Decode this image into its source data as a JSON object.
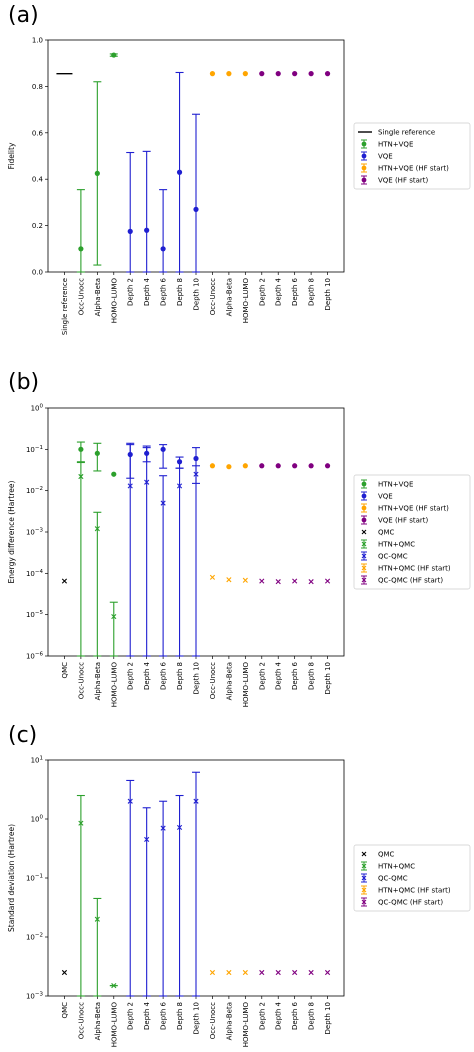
{
  "colors": {
    "single": "#000000",
    "htn": "#2ca02c",
    "vqe": "#1f1fd0",
    "htn_hf": "#ffa500",
    "vqe_hf": "#800080",
    "qmc": "#000000"
  },
  "chart_data": [
    {
      "panel": "(a)",
      "type": "scatter",
      "scale": "linear",
      "ylabel": "Fidelity",
      "ylim": [
        0,
        1.0
      ],
      "yticks": [
        {
          "v": 0.0,
          "label": "0.0"
        },
        {
          "v": 0.2,
          "label": "0.2"
        },
        {
          "v": 0.4,
          "label": "0.4"
        },
        {
          "v": 0.6,
          "label": "0.6"
        },
        {
          "v": 0.8,
          "label": "0.8"
        },
        {
          "v": 1.0,
          "label": "1.0"
        }
      ],
      "categories": [
        "Single reference",
        "Occ-Unocc",
        "Alpha-Beta",
        "HOMO-LUMO",
        "Depth 2",
        "Depth 4",
        "Depth 6",
        "Depth 8",
        "Depth 10",
        "Occ-Unocc",
        "Alpha-Beta",
        "HOMO-LUMO",
        "Depth 2",
        "Depth 4",
        "Depth 6",
        "Depth 8",
        "Depth 10"
      ],
      "legend_position": "right",
      "legend": [
        {
          "label": "Single reference",
          "series": "single_reference",
          "marker": "line"
        },
        {
          "label": "HTN+VQE",
          "series": "htn_vqe",
          "marker": "dot-err"
        },
        {
          "label": "VQE",
          "series": "vqe",
          "marker": "dot-err"
        },
        {
          "label": "HTN+VQE (HF start)",
          "series": "htn_vqe_hf",
          "marker": "dot-err"
        },
        {
          "label": "VQE (HF start)",
          "series": "vqe_hf",
          "marker": "dot-err"
        }
      ],
      "series": [
        {
          "name": "Single reference",
          "key": "single_reference",
          "color_key": "single",
          "marker": "hline",
          "points": [
            {
              "i": 0,
              "y": 0.855
            }
          ]
        },
        {
          "name": "HTN+VQE",
          "key": "htn_vqe",
          "color_key": "htn",
          "marker": "dot",
          "points": [
            {
              "i": 1,
              "y": 0.1,
              "lo": 0.0,
              "hi": 0.355
            },
            {
              "i": 2,
              "y": 0.425,
              "lo": 0.03,
              "hi": 0.82
            },
            {
              "i": 3,
              "y": 0.935,
              "lo": 0.93,
              "hi": 0.94
            }
          ]
        },
        {
          "name": "VQE",
          "key": "vqe",
          "color_key": "vqe",
          "marker": "dot",
          "points": [
            {
              "i": 4,
              "y": 0.175,
              "lo": 0.0,
              "hi": 0.515
            },
            {
              "i": 5,
              "y": 0.18,
              "lo": 0.0,
              "hi": 0.52
            },
            {
              "i": 6,
              "y": 0.1,
              "lo": 0.0,
              "hi": 0.355
            },
            {
              "i": 7,
              "y": 0.43,
              "lo": 0.0,
              "hi": 0.86
            },
            {
              "i": 8,
              "y": 0.27,
              "lo": 0.0,
              "hi": 0.68
            }
          ]
        },
        {
          "name": "HTN+VQE (HF start)",
          "key": "htn_vqe_hf",
          "color_key": "htn_hf",
          "marker": "dot",
          "points": [
            {
              "i": 9,
              "y": 0.855
            },
            {
              "i": 10,
              "y": 0.855
            },
            {
              "i": 11,
              "y": 0.855
            }
          ]
        },
        {
          "name": "VQE (HF start)",
          "key": "vqe_hf",
          "color_key": "vqe_hf",
          "marker": "dot",
          "points": [
            {
              "i": 12,
              "y": 0.855
            },
            {
              "i": 13,
              "y": 0.855
            },
            {
              "i": 14,
              "y": 0.855
            },
            {
              "i": 15,
              "y": 0.855
            },
            {
              "i": 16,
              "y": 0.855
            }
          ]
        }
      ]
    },
    {
      "panel": "(b)",
      "type": "scatter",
      "scale": "log",
      "ylabel": "Energy difference (Hartree)",
      "ylim": [
        1e-06,
        1
      ],
      "yticks": [
        {
          "v": 1e-06,
          "base": "10",
          "exp": "−6"
        },
        {
          "v": 1e-05,
          "base": "10",
          "exp": "−5"
        },
        {
          "v": 0.0001,
          "base": "10",
          "exp": "−4"
        },
        {
          "v": 0.001,
          "base": "10",
          "exp": "−3"
        },
        {
          "v": 0.01,
          "base": "10",
          "exp": "−2"
        },
        {
          "v": 0.1,
          "base": "10",
          "exp": "−1"
        },
        {
          "v": 1,
          "base": "10",
          "exp": "0"
        }
      ],
      "categories": [
        "QMC",
        "Occ-Unocc",
        "Alpha-Beta",
        "HOMO-LUMO",
        "Depth 2",
        "Depth 4",
        "Depth 6",
        "Depth 8",
        "Depth 10",
        "Occ-Unocc",
        "Alpha-Beta",
        "HOMO-LUMO",
        "Depth 2",
        "Depth 4",
        "Depth 6",
        "Depth 8",
        "Depth 10"
      ],
      "legend_position": "right",
      "legend": [
        {
          "label": "HTN+VQE",
          "series": "htn_vqe",
          "marker": "dot-err"
        },
        {
          "label": "VQE",
          "series": "vqe",
          "marker": "dot-err"
        },
        {
          "label": "HTN+VQE (HF start)",
          "series": "htn_vqe_hf",
          "marker": "dot-err"
        },
        {
          "label": "VQE (HF start)",
          "series": "vqe_hf",
          "marker": "dot-err"
        },
        {
          "label": "QMC",
          "series": "qmc",
          "marker": "x"
        },
        {
          "label": "HTN+QMC",
          "series": "htn_qmc",
          "marker": "x-err"
        },
        {
          "label": "QC-QMC",
          "series": "qc_qmc",
          "marker": "x-err"
        },
        {
          "label": "HTN+QMC (HF start)",
          "series": "htn_qmc_hf",
          "marker": "x-err"
        },
        {
          "label": "QC-QMC (HF start)",
          "series": "qc_qmc_hf",
          "marker": "x-err"
        }
      ],
      "series": [
        {
          "name": "HTN+VQE",
          "key": "htn_vqe",
          "color_key": "htn",
          "marker": "dot",
          "points": [
            {
              "i": 1,
              "y": 0.1,
              "lo": 0.05,
              "hi": 0.15
            },
            {
              "i": 2,
              "y": 0.08,
              "lo": 0.03,
              "hi": 0.14
            },
            {
              "i": 3,
              "y": 0.025
            }
          ]
        },
        {
          "name": "VQE",
          "key": "vqe",
          "color_key": "vqe",
          "marker": "dot",
          "points": [
            {
              "i": 4,
              "y": 0.075,
              "lo": 0.02,
              "hi": 0.13
            },
            {
              "i": 5,
              "y": 0.08,
              "lo": 0.05,
              "hi": 0.11
            },
            {
              "i": 6,
              "y": 0.1,
              "lo": 0.035,
              "hi": 0.13
            },
            {
              "i": 7,
              "y": 0.05,
              "lo": 0.035,
              "hi": 0.065
            },
            {
              "i": 8,
              "y": 0.06,
              "lo": 0.015,
              "hi": 0.11
            }
          ]
        },
        {
          "name": "HTN+VQE (HF start)",
          "key": "htn_vqe_hf",
          "color_key": "htn_hf",
          "marker": "dot",
          "points": [
            {
              "i": 9,
              "y": 0.04
            },
            {
              "i": 10,
              "y": 0.038
            },
            {
              "i": 11,
              "y": 0.04
            }
          ]
        },
        {
          "name": "VQE (HF start)",
          "key": "vqe_hf",
          "color_key": "vqe_hf",
          "marker": "dot",
          "points": [
            {
              "i": 12,
              "y": 0.04
            },
            {
              "i": 13,
              "y": 0.04
            },
            {
              "i": 14,
              "y": 0.04
            },
            {
              "i": 15,
              "y": 0.04
            },
            {
              "i": 16,
              "y": 0.04
            }
          ]
        },
        {
          "name": "QMC",
          "key": "qmc",
          "color_key": "qmc",
          "marker": "x",
          "points": [
            {
              "i": 0,
              "y": 6.5e-05
            }
          ]
        },
        {
          "name": "HTN+QMC",
          "key": "htn_qmc",
          "color_key": "htn",
          "marker": "x",
          "points": [
            {
              "i": 1,
              "y": 0.022,
              "lo": 1e-06,
              "hi": 0.048
            },
            {
              "i": 2,
              "y": 0.0012,
              "lo": 1e-06,
              "hi": 0.003
            },
            {
              "i": 3,
              "y": 9e-06,
              "lo": 1e-06,
              "hi": 2e-05
            }
          ]
        },
        {
          "name": "QC-QMC",
          "key": "qc_qmc",
          "color_key": "vqe",
          "marker": "x",
          "points": [
            {
              "i": 4,
              "y": 0.013,
              "lo": 1e-06,
              "hi": 0.14
            },
            {
              "i": 5,
              "y": 0.016,
              "lo": 1e-06,
              "hi": 0.12
            },
            {
              "i": 6,
              "y": 0.005,
              "lo": 1e-06,
              "hi": 0.023
            },
            {
              "i": 7,
              "y": 0.013,
              "lo": 1e-06,
              "hi": 0.035
            },
            {
              "i": 8,
              "y": 0.025,
              "lo": 1e-06,
              "hi": 0.04
            }
          ]
        },
        {
          "name": "HTN+QMC (HF start)",
          "key": "htn_qmc_hf",
          "color_key": "htn_hf",
          "marker": "x",
          "points": [
            {
              "i": 9,
              "y": 8e-05
            },
            {
              "i": 10,
              "y": 7e-05
            },
            {
              "i": 11,
              "y": 6.8e-05
            }
          ]
        },
        {
          "name": "QC-QMC (HF start)",
          "key": "qc_qmc_hf",
          "color_key": "vqe_hf",
          "marker": "x",
          "points": [
            {
              "i": 12,
              "y": 6.5e-05
            },
            {
              "i": 13,
              "y": 6.3e-05
            },
            {
              "i": 14,
              "y": 6.5e-05
            },
            {
              "i": 15,
              "y": 6.3e-05
            },
            {
              "i": 16,
              "y": 6.5e-05
            }
          ]
        }
      ]
    },
    {
      "panel": "(c)",
      "type": "scatter",
      "scale": "log",
      "ylabel": "Standard deviation (Hartree)",
      "ylim": [
        0.001,
        10
      ],
      "yticks": [
        {
          "v": 0.001,
          "base": "10",
          "exp": "−3"
        },
        {
          "v": 0.01,
          "base": "10",
          "exp": "−2"
        },
        {
          "v": 0.1,
          "base": "10",
          "exp": "−1"
        },
        {
          "v": 1,
          "base": "10",
          "exp": "0"
        },
        {
          "v": 10,
          "base": "10",
          "exp": "1"
        }
      ],
      "categories": [
        "QMC",
        "Occ-Unocc",
        "Alpha-Beta",
        "HOMO-LUMO",
        "Depth 2",
        "Depth 4",
        "Depth 6",
        "Depth 8",
        "Depth 10",
        "Occ-Unocc",
        "Alpha-Beta",
        "HOMO-LUMO",
        "Depth 2",
        "Depth 4",
        "Depth 6",
        "Depth 8",
        "Depth 10"
      ],
      "legend_position": "right",
      "legend": [
        {
          "label": "QMC",
          "series": "qmc",
          "marker": "x"
        },
        {
          "label": "HTN+QMC",
          "series": "htn_qmc",
          "marker": "x-err"
        },
        {
          "label": "QC-QMC",
          "series": "qc_qmc",
          "marker": "x-err"
        },
        {
          "label": "HTN+QMC (HF start)",
          "series": "htn_qmc_hf",
          "marker": "x-err"
        },
        {
          "label": "QC-QMC (HF start)",
          "series": "qc_qmc_hf",
          "marker": "x-err"
        }
      ],
      "series": [
        {
          "name": "QMC",
          "key": "qmc",
          "color_key": "qmc",
          "marker": "x",
          "points": [
            {
              "i": 0,
              "y": 0.0025
            }
          ]
        },
        {
          "name": "HTN+QMC",
          "key": "htn_qmc",
          "color_key": "htn",
          "marker": "x",
          "points": [
            {
              "i": 1,
              "y": 0.85,
              "lo": 0.001,
              "hi": 2.5
            },
            {
              "i": 2,
              "y": 0.02,
              "lo": 0.001,
              "hi": 0.045
            },
            {
              "i": 3,
              "y": 0.0015,
              "lo": 0.0015,
              "hi": 0.0015
            }
          ]
        },
        {
          "name": "QC-QMC",
          "key": "qc_qmc",
          "color_key": "vqe",
          "marker": "x",
          "points": [
            {
              "i": 4,
              "y": 2.0,
              "lo": 0.001,
              "hi": 4.5
            },
            {
              "i": 5,
              "y": 0.45,
              "lo": 0.001,
              "hi": 1.55
            },
            {
              "i": 6,
              "y": 0.7,
              "lo": 0.001,
              "hi": 2.0
            },
            {
              "i": 7,
              "y": 0.72,
              "lo": 0.001,
              "hi": 2.5
            },
            {
              "i": 8,
              "y": 2.0,
              "lo": 0.001,
              "hi": 6.2
            }
          ]
        },
        {
          "name": "HTN+QMC (HF start)",
          "key": "htn_qmc_hf",
          "color_key": "htn_hf",
          "marker": "x",
          "points": [
            {
              "i": 9,
              "y": 0.0025
            },
            {
              "i": 10,
              "y": 0.0025
            },
            {
              "i": 11,
              "y": 0.0025
            }
          ]
        },
        {
          "name": "QC-QMC (HF start)",
          "key": "qc_qmc_hf",
          "color_key": "vqe_hf",
          "marker": "x",
          "points": [
            {
              "i": 12,
              "y": 0.0025
            },
            {
              "i": 13,
              "y": 0.0025
            },
            {
              "i": 14,
              "y": 0.0025
            },
            {
              "i": 15,
              "y": 0.0025
            },
            {
              "i": 16,
              "y": 0.0025
            }
          ]
        }
      ]
    }
  ]
}
